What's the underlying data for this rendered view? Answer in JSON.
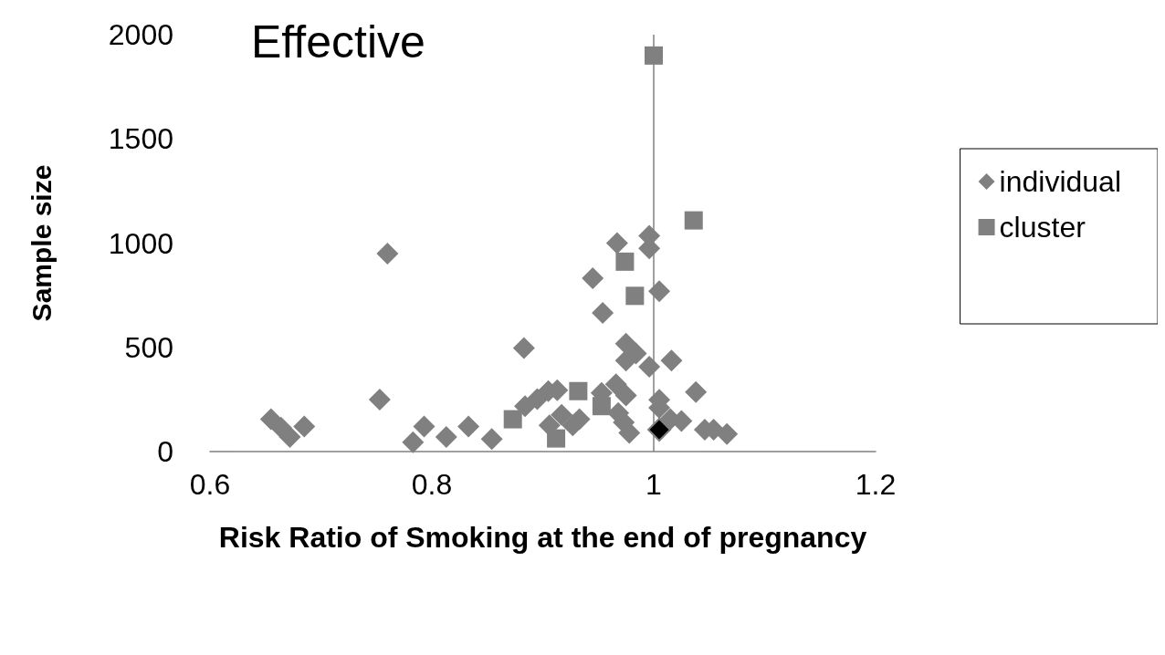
{
  "chart_data": {
    "type": "scatter",
    "title": "Effective",
    "xlabel": "Risk Ratio of Smoking at the end of pregnancy",
    "ylabel": "Sample size",
    "xlim": [
      0.6,
      1.2
    ],
    "xticks": [
      0.6,
      0.8,
      1,
      1.2
    ],
    "ylim": [
      0,
      2000
    ],
    "yticks": [
      0,
      500,
      1000,
      1500,
      2000
    ],
    "grid": false,
    "legend": "right",
    "ref_lines": [
      {
        "axis": "x",
        "value": 1,
        "color": "#808080"
      }
    ],
    "series": [
      {
        "name": "individual",
        "color": "#808080",
        "marker": "diamond",
        "x": [
          0.655,
          0.664,
          0.672,
          0.685,
          0.753,
          0.76,
          0.783,
          0.793,
          0.813,
          0.833,
          0.854,
          0.883,
          0.945,
          0.954,
          0.967,
          0.996,
          0.996,
          1.005,
          0.975,
          0.984,
          0.975,
          0.996,
          1.016,
          1.038,
          1.005,
          1.005,
          1.015,
          1.025,
          1.046,
          1.054,
          1.066,
          0.966,
          0.975,
          0.953,
          0.968,
          0.973,
          0.978,
          0.933,
          0.927,
          0.917,
          0.906,
          0.913,
          0.905,
          0.895,
          0.884
        ],
        "values": [
          155,
          115,
          70,
          120,
          250,
          950,
          45,
          120,
          70,
          120,
          60,
          497,
          832,
          665,
          1000,
          1035,
          975,
          769,
          517,
          471,
          437,
          407,
          437,
          286,
          248,
          210,
          155,
          147,
          105,
          105,
          84,
          323,
          269,
          281,
          185,
          140,
          90,
          155,
          126,
          176,
          126,
          294,
          290,
          252,
          218
        ]
      },
      {
        "name": "cluster",
        "color": "#808080",
        "marker": "square",
        "x": [
          1.0,
          1.036,
          0.974,
          0.983,
          0.932,
          0.953,
          0.873,
          0.912
        ],
        "values": [
          1900,
          1109,
          911,
          747,
          290,
          218,
          155,
          63
        ]
      },
      {
        "color": "#000000",
        "marker": "diamond",
        "x": [
          1.005
        ],
        "values": [
          105
        ]
      }
    ]
  }
}
